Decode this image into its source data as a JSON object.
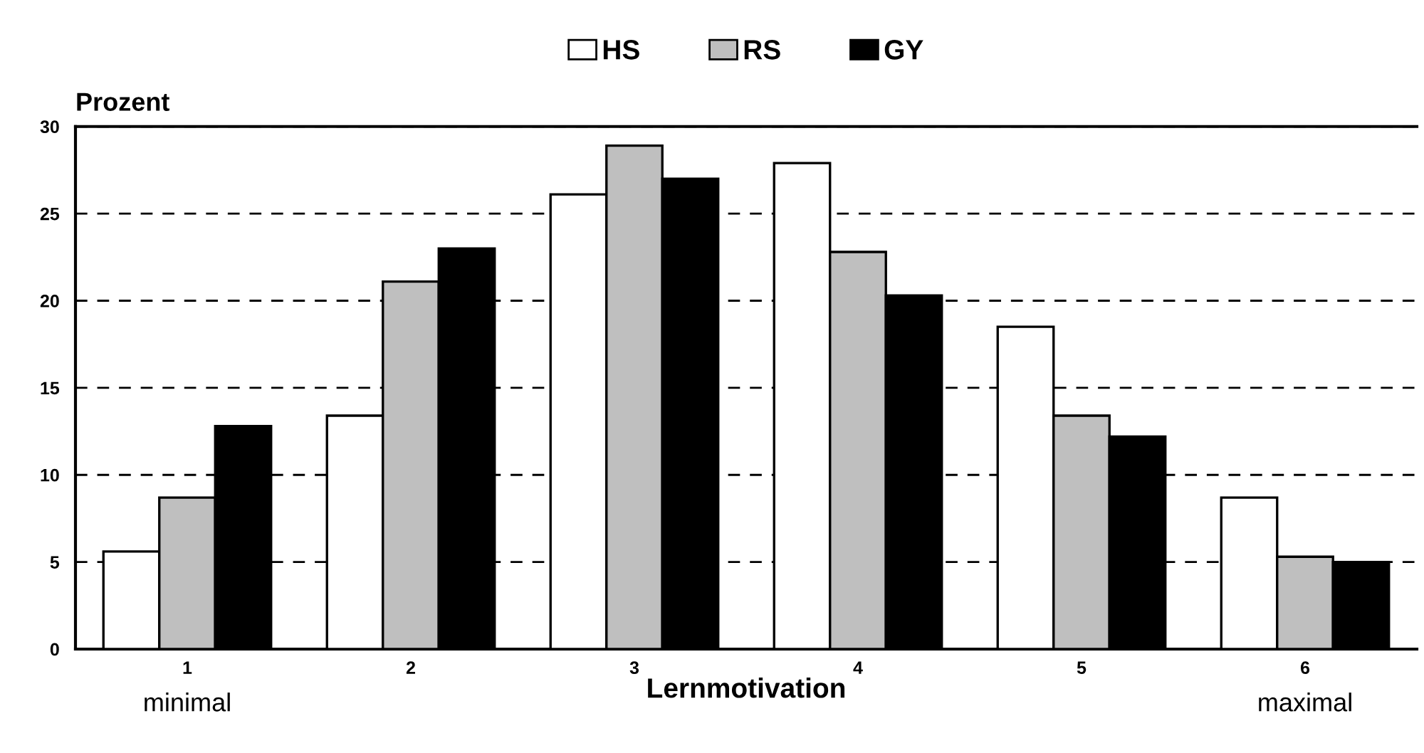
{
  "chart_data": {
    "type": "bar",
    "ylabel": "Prozent",
    "xlabel": "Lernmotivation",
    "categories": [
      "1",
      "2",
      "3",
      "4",
      "5",
      "6"
    ],
    "series": [
      {
        "name": "HS",
        "color": "#ffffff",
        "values": [
          5.6,
          13.4,
          26.1,
          27.9,
          18.5,
          8.7
        ]
      },
      {
        "name": "RS",
        "color": "#bfbfbf",
        "values": [
          8.7,
          21.1,
          28.9,
          22.8,
          13.4,
          5.3
        ]
      },
      {
        "name": "GY",
        "color": "#000000",
        "values": [
          12.8,
          23.0,
          27.0,
          20.3,
          12.2,
          5.0
        ]
      }
    ],
    "ylim": [
      0,
      30
    ],
    "yticks": [
      0,
      5,
      10,
      15,
      20,
      25,
      30
    ],
    "grid": "y",
    "legend": "top",
    "annotations": [
      "minimal",
      "maximal"
    ]
  }
}
